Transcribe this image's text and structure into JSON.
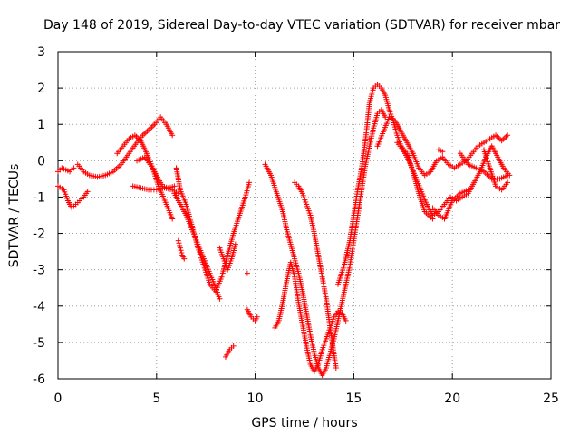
{
  "chart_data": {
    "type": "scatter",
    "title": "Day 148 of 2019, Sidereal Day-to-day VTEC variation (SDTVAR) for receiver mbar",
    "xlabel": "GPS time / hours",
    "ylabel": "SDTVAR / TECUs",
    "xlim": [
      0,
      25
    ],
    "ylim": [
      -6,
      3
    ],
    "xticks": [
      "0",
      "5",
      "10",
      "15",
      "20",
      "25"
    ],
    "yticks": [
      "3",
      "2",
      "1",
      "0",
      "-1",
      "-2",
      "-3",
      "-4",
      "-5",
      "-6"
    ],
    "grid": true,
    "marker": "+",
    "color": "#ff0000",
    "series": [
      {
        "name": "s1",
        "x": [
          0.0,
          0.2,
          0.4,
          0.6,
          0.8
        ],
        "y": [
          -0.3,
          -0.2,
          -0.25,
          -0.3,
          -0.2
        ]
      },
      {
        "name": "s2",
        "x": [
          0.0,
          0.3,
          0.5,
          0.7,
          0.9,
          1.1,
          1.3,
          1.5
        ],
        "y": [
          -0.7,
          -0.8,
          -1.1,
          -1.3,
          -1.2,
          -1.1,
          -1.0,
          -0.85
        ]
      },
      {
        "name": "s3",
        "x": [
          1.0,
          1.3,
          1.6,
          2.0,
          2.4,
          2.8,
          3.2,
          3.6,
          4.0,
          4.3,
          4.6,
          4.9,
          5.2,
          5.5,
          5.8
        ],
        "y": [
          -0.1,
          -0.3,
          -0.4,
          -0.45,
          -0.4,
          -0.3,
          -0.1,
          0.2,
          0.5,
          0.7,
          0.85,
          1.0,
          1.2,
          1.0,
          0.7
        ]
      },
      {
        "name": "s4",
        "x": [
          3.0,
          3.3,
          3.6,
          3.9,
          4.2,
          4.5,
          4.8,
          5.1,
          5.3,
          5.6,
          5.9
        ],
        "y": [
          0.2,
          0.4,
          0.6,
          0.7,
          0.55,
          0.2,
          -0.2,
          -0.5,
          -0.7,
          -0.75,
          -0.7
        ]
      },
      {
        "name": "s5",
        "x": [
          3.8,
          4.2,
          4.6,
          5.0,
          5.4,
          5.8,
          6.1
        ],
        "y": [
          -0.7,
          -0.75,
          -0.8,
          -0.8,
          -0.75,
          -0.8,
          -0.9
        ]
      },
      {
        "name": "s6",
        "x": [
          4.0,
          4.4,
          4.8,
          5.1,
          5.5,
          5.8
        ],
        "y": [
          0.0,
          0.1,
          -0.2,
          -0.7,
          -1.2,
          -1.6
        ]
      },
      {
        "name": "s7",
        "x": [
          6.0,
          6.2,
          6.5,
          6.8,
          7.1,
          7.4,
          7.7,
          8.0,
          8.3,
          8.6,
          8.9,
          9.2,
          9.5,
          9.7
        ],
        "y": [
          -0.2,
          -0.8,
          -1.2,
          -1.8,
          -2.4,
          -2.9,
          -3.4,
          -3.6,
          -3.2,
          -2.6,
          -2.0,
          -1.5,
          -1.0,
          -0.6
        ]
      },
      {
        "name": "s8",
        "x": [
          5.9,
          6.2,
          6.5,
          6.8,
          7.1,
          7.4,
          7.7,
          8.0,
          8.2
        ],
        "y": [
          -0.9,
          -1.2,
          -1.5,
          -1.9,
          -2.3,
          -2.7,
          -3.1,
          -3.5,
          -3.8
        ]
      },
      {
        "name": "s9",
        "x": [
          6.1,
          6.2,
          6.3,
          6.4
        ],
        "y": [
          -2.2,
          -2.4,
          -2.6,
          -2.7
        ]
      },
      {
        "name": "s10",
        "x": [
          8.2,
          8.4,
          8.6,
          8.8,
          9.0
        ],
        "y": [
          -2.4,
          -2.7,
          -3.0,
          -2.7,
          -2.3
        ]
      },
      {
        "name": "s11",
        "x": [
          8.5,
          8.7,
          8.9
        ],
        "y": [
          -5.4,
          -5.2,
          -5.1
        ]
      },
      {
        "name": "s12",
        "x": [
          9.6,
          9.8,
          10.0,
          10.1
        ],
        "y": [
          -4.1,
          -4.3,
          -4.4,
          -4.3
        ]
      },
      {
        "name": "s13",
        "x": [
          10.5,
          10.8,
          11.1,
          11.4,
          11.6,
          11.8,
          12.0,
          12.2,
          12.4,
          12.6,
          12.8,
          13.0,
          13.2,
          13.4,
          13.6,
          13.8,
          14.0,
          14.2,
          14.4,
          14.6,
          14.8,
          15.0,
          15.2,
          15.4,
          15.6,
          15.8,
          16.0,
          16.2,
          16.4,
          16.6
        ],
        "y": [
          -0.1,
          -0.4,
          -0.9,
          -1.4,
          -1.9,
          -2.3,
          -2.7,
          -3.1,
          -3.6,
          -4.2,
          -4.8,
          -5.3,
          -5.7,
          -5.9,
          -5.7,
          -5.3,
          -4.9,
          -4.4,
          -3.9,
          -3.4,
          -2.9,
          -2.2,
          -1.5,
          -0.8,
          -0.1,
          0.4,
          0.9,
          1.3,
          1.4,
          1.2
        ]
      },
      {
        "name": "s14",
        "x": [
          11.0,
          11.2,
          11.4,
          11.6,
          11.8,
          12.0,
          12.2,
          12.4,
          12.6,
          12.8,
          13.0,
          13.2,
          13.4,
          13.6,
          13.8,
          14.0,
          14.2,
          14.4,
          14.6
        ],
        "y": [
          -4.6,
          -4.4,
          -3.9,
          -3.3,
          -2.8,
          -3.2,
          -3.9,
          -4.5,
          -5.1,
          -5.6,
          -5.8,
          -5.6,
          -5.2,
          -4.9,
          -4.6,
          -4.3,
          -4.15,
          -4.2,
          -4.4
        ]
      },
      {
        "name": "s15",
        "x": [
          12.0,
          12.2,
          12.4,
          12.6,
          12.8,
          13.0,
          13.2,
          13.4,
          13.6,
          13.8,
          14.1
        ],
        "y": [
          -0.6,
          -0.7,
          -0.9,
          -1.2,
          -1.5,
          -2.0,
          -2.6,
          -3.2,
          -3.8,
          -4.6,
          -5.7
        ]
      },
      {
        "name": "s16",
        "x": [
          14.2,
          14.5,
          14.8,
          15.0,
          15.2,
          15.4,
          15.6,
          15.8,
          16.0,
          16.2,
          16.4,
          16.6,
          16.8,
          17.0,
          17.2,
          17.4,
          17.6,
          17.8,
          18.0
        ],
        "y": [
          -3.4,
          -2.9,
          -2.2,
          -1.5,
          -0.8,
          -0.2,
          0.6,
          1.6,
          2.0,
          2.1,
          2.0,
          1.8,
          1.4,
          1.1,
          0.7,
          0.4,
          0.2,
          0.1,
          0.2
        ]
      },
      {
        "name": "s17",
        "x": [
          16.2,
          16.5,
          16.8,
          17.1,
          17.4,
          17.7,
          18.0,
          18.3,
          18.6,
          18.9,
          19.2,
          19.5,
          19.8,
          20.1,
          20.4,
          20.7,
          21.0,
          21.3,
          21.6,
          21.9,
          22.2,
          22.5,
          22.8
        ],
        "y": [
          0.4,
          0.8,
          1.2,
          1.1,
          0.8,
          0.5,
          0.2,
          -0.2,
          -0.4,
          -0.3,
          0.0,
          0.1,
          -0.1,
          -0.2,
          -0.1,
          0.0,
          0.2,
          0.4,
          0.5,
          0.6,
          0.7,
          0.55,
          0.7
        ]
      },
      {
        "name": "s18",
        "x": [
          17.2,
          17.5,
          17.8,
          18.1,
          18.4,
          18.7,
          19.0,
          19.3,
          19.6,
          19.9,
          20.2,
          20.5,
          20.8,
          21.1,
          21.4,
          21.7,
          22.0,
          22.3,
          22.6,
          22.9
        ],
        "y": [
          0.5,
          0.3,
          0.0,
          -0.4,
          -0.8,
          -1.2,
          -1.5,
          -1.4,
          -1.2,
          -1.0,
          -1.1,
          -1.0,
          -0.9,
          -0.6,
          -0.3,
          0.1,
          0.4,
          0.1,
          -0.2,
          -0.4
        ]
      },
      {
        "name": "s19",
        "x": [
          17.4,
          17.7,
          18.0,
          18.3,
          18.6,
          19.0
        ],
        "y": [
          0.4,
          0.2,
          -0.3,
          -0.9,
          -1.4,
          -1.6
        ]
      },
      {
        "name": "s20",
        "x": [
          19.0,
          19.3,
          19.6,
          20.0,
          20.4,
          20.8
        ],
        "y": [
          -1.3,
          -1.5,
          -1.6,
          -1.1,
          -0.9,
          -0.8
        ]
      },
      {
        "name": "s21",
        "x": [
          20.4,
          20.8,
          21.2,
          21.6,
          22.0,
          22.4,
          22.8
        ],
        "y": [
          0.2,
          -0.1,
          -0.2,
          -0.3,
          -0.5,
          -0.5,
          -0.4
        ]
      },
      {
        "name": "s22",
        "x": [
          21.6,
          21.9,
          22.2,
          22.5,
          22.8
        ],
        "y": [
          0.3,
          -0.2,
          -0.7,
          -0.8,
          -0.6
        ]
      },
      {
        "name": "s23",
        "x": [
          19.3,
          19.5,
          15.8,
          9.6,
          14.7
        ],
        "y": [
          0.3,
          0.25,
          0.6,
          -3.1,
          -2.6
        ]
      }
    ]
  }
}
